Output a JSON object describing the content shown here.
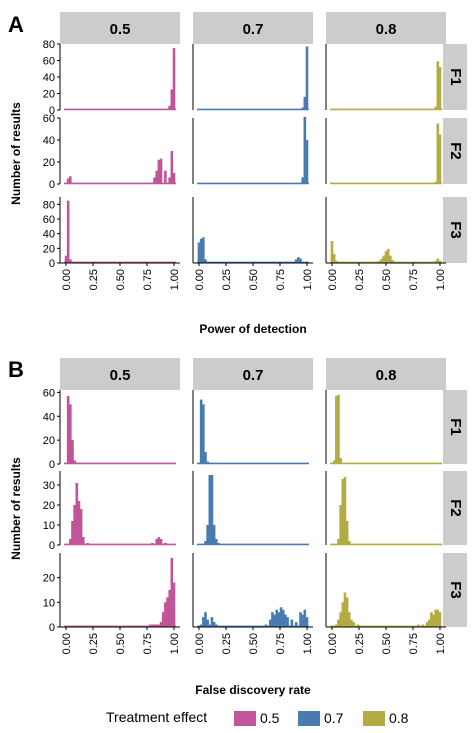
{
  "chart_data": {
    "type": "bar",
    "colors": {
      "0.5": "#c0559a",
      "0.7": "#4a7bb0",
      "0.8": "#b3ac45"
    },
    "strip_fill": "#cccccc",
    "x_ticks": [
      "0.00",
      "0.25",
      "0.50",
      "0.75",
      "1.00"
    ],
    "column_labels": [
      "0.5",
      "0.7",
      "0.8"
    ],
    "row_labels": [
      "F1",
      "F2",
      "F3"
    ],
    "legend": {
      "title": "Treatment effect",
      "entries": [
        "0.5",
        "0.7",
        "0.8"
      ],
      "position": "bottom"
    },
    "panels": [
      {
        "tag": "A",
        "xlabel": "Power of detection",
        "ylabel": "Number of results",
        "xlim": [
          0,
          1
        ],
        "rows": [
          {
            "label": "F1",
            "ylim": [
              0,
              80
            ],
            "yticks": [
              0,
              20,
              40,
              60,
              80
            ],
            "facets": [
              {
                "col": "0.5",
                "x": [
                  0.0,
                  0.96,
                  0.98,
                  1.0
                ],
                "y": [
                  0.8,
                  5,
                  25,
                  75
                ]
              },
              {
                "col": "0.7",
                "x": [
                  0.0,
                  0.96,
                  0.98,
                  1.0
                ],
                "y": [
                  0.8,
                  3,
                  16,
                  77
                ]
              },
              {
                "col": "0.8",
                "x": [
                  0.0,
                  0.96,
                  0.98,
                  1.0
                ],
                "y": [
                  0.8,
                  4,
                  59,
                  52
                ]
              }
            ]
          },
          {
            "label": "F2",
            "ylim": [
              0,
              60
            ],
            "yticks": [
              0,
              20,
              40,
              60
            ],
            "facets": [
              {
                "col": "0.5",
                "x": [
                  0.0,
                  0.02,
                  0.04,
                  0.82,
                  0.84,
                  0.86,
                  0.88,
                  0.92,
                  0.96,
                  0.98,
                  1.0
                ],
                "y": [
                  1,
                  5,
                  7,
                  6,
                  12,
                  22,
                  23,
                  12,
                  6,
                  30,
                  10
                ]
              },
              {
                "col": "0.7",
                "x": [
                  0.0,
                  0.96,
                  0.98,
                  1.0
                ],
                "y": [
                  0.8,
                  6,
                  61,
                  40
                ]
              },
              {
                "col": "0.8",
                "x": [
                  0.0,
                  0.96,
                  0.98,
                  1.0
                ],
                "y": [
                  0.8,
                  2,
                  55,
                  45
                ]
              }
            ]
          },
          {
            "label": "F3",
            "ylim": [
              0,
              90
            ],
            "yticks": [
              0,
              20,
              40,
              60,
              80
            ],
            "facets": [
              {
                "col": "0.5",
                "x": [
                  0.0,
                  0.02,
                  0.04,
                  1.0
                ],
                "y": [
                  10,
                  85,
                  5,
                  1
                ]
              },
              {
                "col": "0.7",
                "x": [
                  0.0,
                  0.02,
                  0.04,
                  0.06,
                  0.9,
                  0.92,
                  0.94
                ],
                "y": [
                  28,
                  33,
                  35,
                  5,
                  5,
                  8,
                  6
                ]
              },
              {
                "col": "0.8",
                "x": [
                  0.0,
                  0.02,
                  0.04,
                  0.44,
                  0.46,
                  0.48,
                  0.5,
                  0.52,
                  0.54,
                  0.56,
                  0.96,
                  0.98,
                  1.0
                ],
                "y": [
                  30,
                  12,
                  3,
                  3,
                  6,
                  10,
                  16,
                  19,
                  10,
                  4,
                  3,
                  6,
                  3
                ]
              }
            ]
          }
        ]
      },
      {
        "tag": "B",
        "xlabel": "False discovery rate",
        "ylabel": "Number of results",
        "xlim": [
          0,
          1
        ],
        "rows": [
          {
            "label": "F1",
            "ylim": [
              0,
              62
            ],
            "yticks": [
              0,
              20,
              40,
              60
            ],
            "facets": [
              {
                "col": "0.5",
                "x": [
                  0.02,
                  0.04,
                  0.06,
                  0.08,
                  0.1
                ],
                "y": [
                  57,
                  50,
                  20,
                  3,
                  1
                ]
              },
              {
                "col": "0.7",
                "x": [
                  0.02,
                  0.04,
                  0.06,
                  0.08
                ],
                "y": [
                  54,
                  50,
                  10,
                  2
                ]
              },
              {
                "col": "0.8",
                "x": [
                  0.02,
                  0.04,
                  0.06,
                  0.08,
                  0.1
                ],
                "y": [
                  3,
                  57,
                  58,
                  5,
                  1
                ]
              }
            ]
          },
          {
            "label": "F2",
            "ylim": [
              0,
              37
            ],
            "yticks": [
              0,
              10,
              20,
              30
            ],
            "facets": [
              {
                "col": "0.5",
                "x": [
                  0.04,
                  0.06,
                  0.08,
                  0.1,
                  0.12,
                  0.14,
                  0.16,
                  0.2,
                  0.8,
                  0.84,
                  0.86,
                  0.88,
                  0.92
                ],
                "y": [
                  3,
                  12,
                  20,
                  31,
                  22,
                  18,
                  4,
                  1,
                  1,
                  3,
                  4,
                  3,
                  1
                ]
              },
              {
                "col": "0.7",
                "x": [
                  0.06,
                  0.08,
                  0.1,
                  0.12,
                  0.14,
                  0.16,
                  0.18
                ],
                "y": [
                  2,
                  10,
                  35,
                  35,
                  10,
                  3,
                  1
                ]
              },
              {
                "col": "0.8",
                "x": [
                  0.06,
                  0.08,
                  0.1,
                  0.12,
                  0.14,
                  0.16
                ],
                "y": [
                  3,
                  20,
                  33,
                  34,
                  12,
                  2
                ]
              }
            ]
          },
          {
            "label": "F3",
            "ylim": [
              0,
              30
            ],
            "yticks": [
              0,
              10,
              20
            ],
            "facets": [
              {
                "col": "0.5",
                "x": [
                  0.78,
                  0.8,
                  0.82,
                  0.84,
                  0.86,
                  0.88,
                  0.9,
                  0.92,
                  0.94,
                  0.96,
                  0.98,
                  1.0
                ],
                "y": [
                  1,
                  1,
                  1,
                  1,
                  1,
                  2,
                  6,
                  10,
                  12,
                  15,
                  28,
                  18
                ]
              },
              {
                "col": "0.7",
                "x": [
                  0.02,
                  0.04,
                  0.06,
                  0.08,
                  0.1,
                  0.12,
                  0.14,
                  0.16,
                  0.62,
                  0.66,
                  0.68,
                  0.7,
                  0.72,
                  0.74,
                  0.76,
                  0.78,
                  0.8,
                  0.82,
                  0.86,
                  0.9,
                  0.94,
                  0.96,
                  0.98,
                  1.0
                ],
                "y": [
                  1,
                  4,
                  6,
                  3,
                  1,
                  4,
                  2,
                  1,
                  1,
                  3,
                  6,
                  5,
                  7,
                  6,
                  8,
                  7,
                  5,
                  4,
                  3,
                  2,
                  6,
                  5,
                  7,
                  4
                ]
              },
              {
                "col": "0.8",
                "x": [
                  0.04,
                  0.06,
                  0.08,
                  0.1,
                  0.12,
                  0.14,
                  0.16,
                  0.18,
                  0.2,
                  0.24,
                  0.8,
                  0.84,
                  0.88,
                  0.9,
                  0.92,
                  0.94,
                  0.96,
                  0.98,
                  1.0
                ],
                "y": [
                  1,
                  3,
                  6,
                  10,
                  14,
                  12,
                  6,
                  3,
                  2,
                  1,
                  1,
                  1,
                  2,
                  3,
                  6,
                  5,
                  7,
                  7,
                  6
                ]
              }
            ]
          }
        ]
      }
    ]
  }
}
